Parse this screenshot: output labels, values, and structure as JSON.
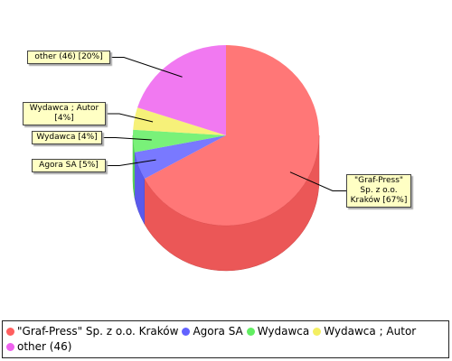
{
  "chart_data": {
    "type": "pie",
    "categories": [
      "\"Graf-Press\" Sp. z o.o. Kraków",
      "Agora SA",
      "Wydawca",
      "Wydawca ; Autor",
      "other (46)"
    ],
    "values": [
      67,
      5,
      4,
      4,
      20
    ],
    "value_labels": [
      "\"Graf-Press\" Sp. z o.o. Kraków [67%]",
      "Agora SA [5%]",
      "Wydawca [4%]",
      "Wydawca ; Autor [4%]",
      "other (46) [20%]"
    ],
    "colors": [
      "#ff5f5f",
      "#6262ff",
      "#62ee62",
      "#f4ef62",
      "#ee62ee"
    ],
    "legend": "bottom"
  }
}
